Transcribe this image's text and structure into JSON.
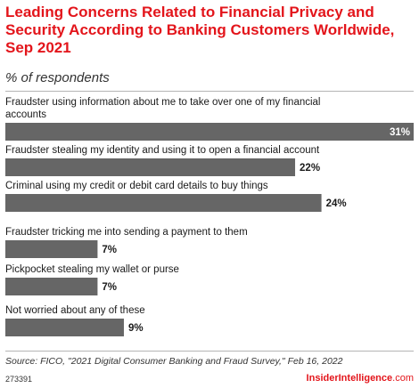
{
  "title": "Leading Concerns Related to Financial Privacy and Security According to Banking Customers Worldwide, Sep 2021",
  "subtitle": "% of respondents",
  "source": "Source: FICO, \"2021 Digital Consumer Banking and Fraud Survey,\" Feb 16, 2022",
  "chart_id": "273391",
  "brand": {
    "part1": "Insider",
    "part2": "Intelligence",
    "suffix": ".com"
  },
  "colors": {
    "bar": "#666666",
    "title": "#e3151b",
    "text": "#1a1a1a"
  },
  "chart_data": {
    "type": "bar",
    "orientation": "horizontal",
    "unit": "%",
    "xlim": [
      0,
      31
    ],
    "grid": false,
    "categories": [
      [
        "Fraudster using information about me to take over one of my financial",
        "accounts"
      ],
      [
        "Fraudster stealing my identity and using it to open a financial account"
      ],
      [
        "Criminal using my credit or debit card details to buy things"
      ],
      [
        "Fraudster tricking me into sending a payment to them"
      ],
      [
        "Pickpocket stealing my wallet or purse"
      ],
      [
        "Not worried about any of these"
      ]
    ],
    "values": [
      31,
      22,
      24,
      7,
      7,
      9
    ]
  }
}
